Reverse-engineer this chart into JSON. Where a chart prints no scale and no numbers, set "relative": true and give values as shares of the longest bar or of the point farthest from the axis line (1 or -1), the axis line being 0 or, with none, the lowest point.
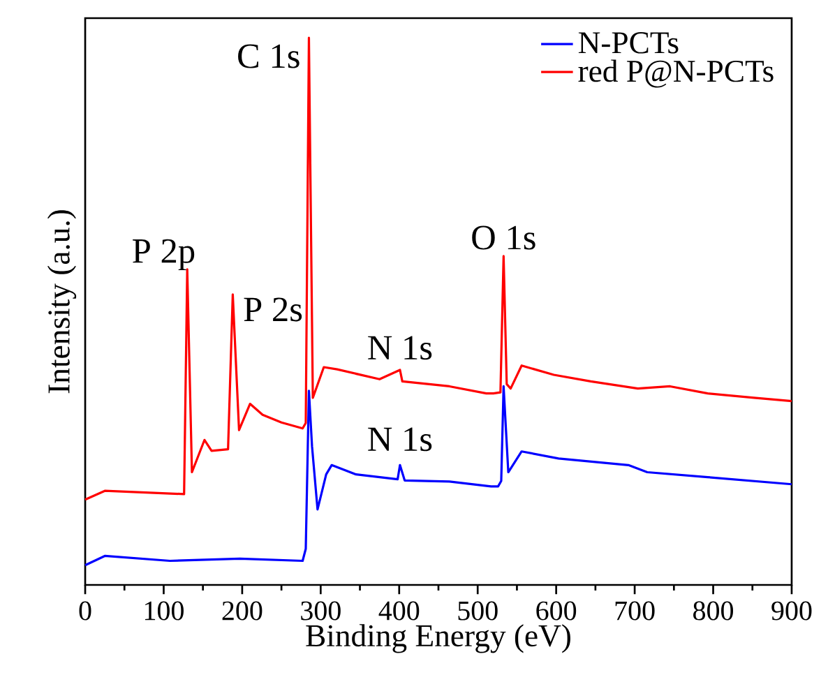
{
  "chart_data": {
    "type": "line",
    "relative": true,
    "xlabel": "Binding Energy (eV)",
    "ylabel": "Intensity (a.u.)",
    "xlim": [
      0,
      900
    ],
    "xticks": [
      0,
      100,
      200,
      300,
      400,
      500,
      600,
      700,
      800,
      900
    ],
    "tick_labels": "x",
    "legend": "top right",
    "grid": false,
    "marker": "none",
    "line_style": "solid",
    "series": [
      {
        "name": "N-PCTs",
        "color": "#0000ff",
        "x": [
          0,
          25,
          108,
          197,
          277,
          281,
          285,
          289,
          296,
          307,
          314,
          345,
          398,
          401,
          407,
          464,
          517,
          526,
          530,
          533,
          539,
          556,
          603,
          692,
          716,
          793,
          900
        ],
        "values": [
          0.036,
          0.053,
          0.044,
          0.048,
          0.044,
          0.066,
          0.355,
          0.253,
          0.138,
          0.202,
          0.219,
          0.202,
          0.193,
          0.219,
          0.191,
          0.189,
          0.18,
          0.18,
          0.19,
          0.363,
          0.206,
          0.244,
          0.231,
          0.219,
          0.206,
          0.197,
          0.184
        ]
      },
      {
        "name": "red P@N-PCTs",
        "color": "#ff0000",
        "x": [
          0,
          25,
          126,
          130,
          136,
          152,
          161,
          182,
          188,
          196,
          210,
          226,
          250,
          277,
          281,
          285,
          290,
          304,
          321,
          375,
          401,
          404,
          464,
          511,
          520,
          529,
          533,
          537,
          542,
          556,
          597,
          644,
          704,
          745,
          793,
          852,
          900
        ],
        "values": [
          0.156,
          0.172,
          0.166,
          0.577,
          0.206,
          0.265,
          0.245,
          0.248,
          0.531,
          0.283,
          0.331,
          0.311,
          0.297,
          0.286,
          0.296,
          1.0,
          0.342,
          0.398,
          0.394,
          0.376,
          0.393,
          0.372,
          0.363,
          0.35,
          0.35,
          0.352,
          0.601,
          0.367,
          0.359,
          0.401,
          0.384,
          0.372,
          0.359,
          0.363,
          0.35,
          0.342,
          0.336
        ]
      }
    ],
    "annotations": [
      {
        "text": "P 2p",
        "x": 130,
        "y": 0.577
      },
      {
        "text": "P 2s",
        "x": 188,
        "y": 0.531
      },
      {
        "text": "C 1s",
        "x": 285,
        "y": 1.0
      },
      {
        "text": "N 1s",
        "x": 401,
        "y": 0.393
      },
      {
        "text": "N 1s",
        "x": 401,
        "y": 0.219
      },
      {
        "text": "O 1s",
        "x": 533,
        "y": 0.601
      }
    ]
  }
}
